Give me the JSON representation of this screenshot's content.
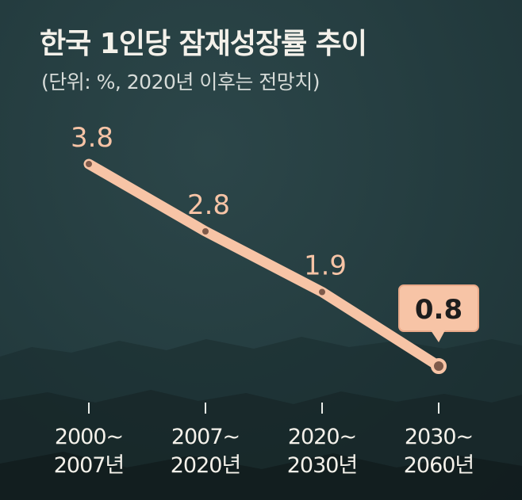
{
  "title": "한국 1인당 잠재성장률 추이",
  "subtitle": "(단위: %, 2020년 이후는 전망치)",
  "colors": {
    "background": "#243c3f",
    "line": "#f7c4a6",
    "marker_fill": "#7e5a4a",
    "highlight_box": "#f7c4a6",
    "highlight_text": "#1d1d1d",
    "label_text": "#f7c4a6",
    "axis_text": "#f4f1ea"
  },
  "chart_data": {
    "type": "line",
    "title": "한국 1인당 잠재성장률 추이",
    "subtitle": "(단위: %, 2020년 이후는 전망치)",
    "categories": [
      [
        "2000~",
        "2007년"
      ],
      [
        "2007~",
        "2020년"
      ],
      [
        "2020~",
        "2030년"
      ],
      [
        "2030~",
        "2060년"
      ]
    ],
    "values": [
      3.8,
      2.8,
      1.9,
      0.8
    ],
    "value_labels": [
      "3.8",
      "2.8",
      "1.9",
      "0.8"
    ],
    "highlighted_index": 3,
    "ylim": [
      0.8,
      3.8
    ],
    "grid": false,
    "xlabel": "",
    "ylabel": ""
  }
}
